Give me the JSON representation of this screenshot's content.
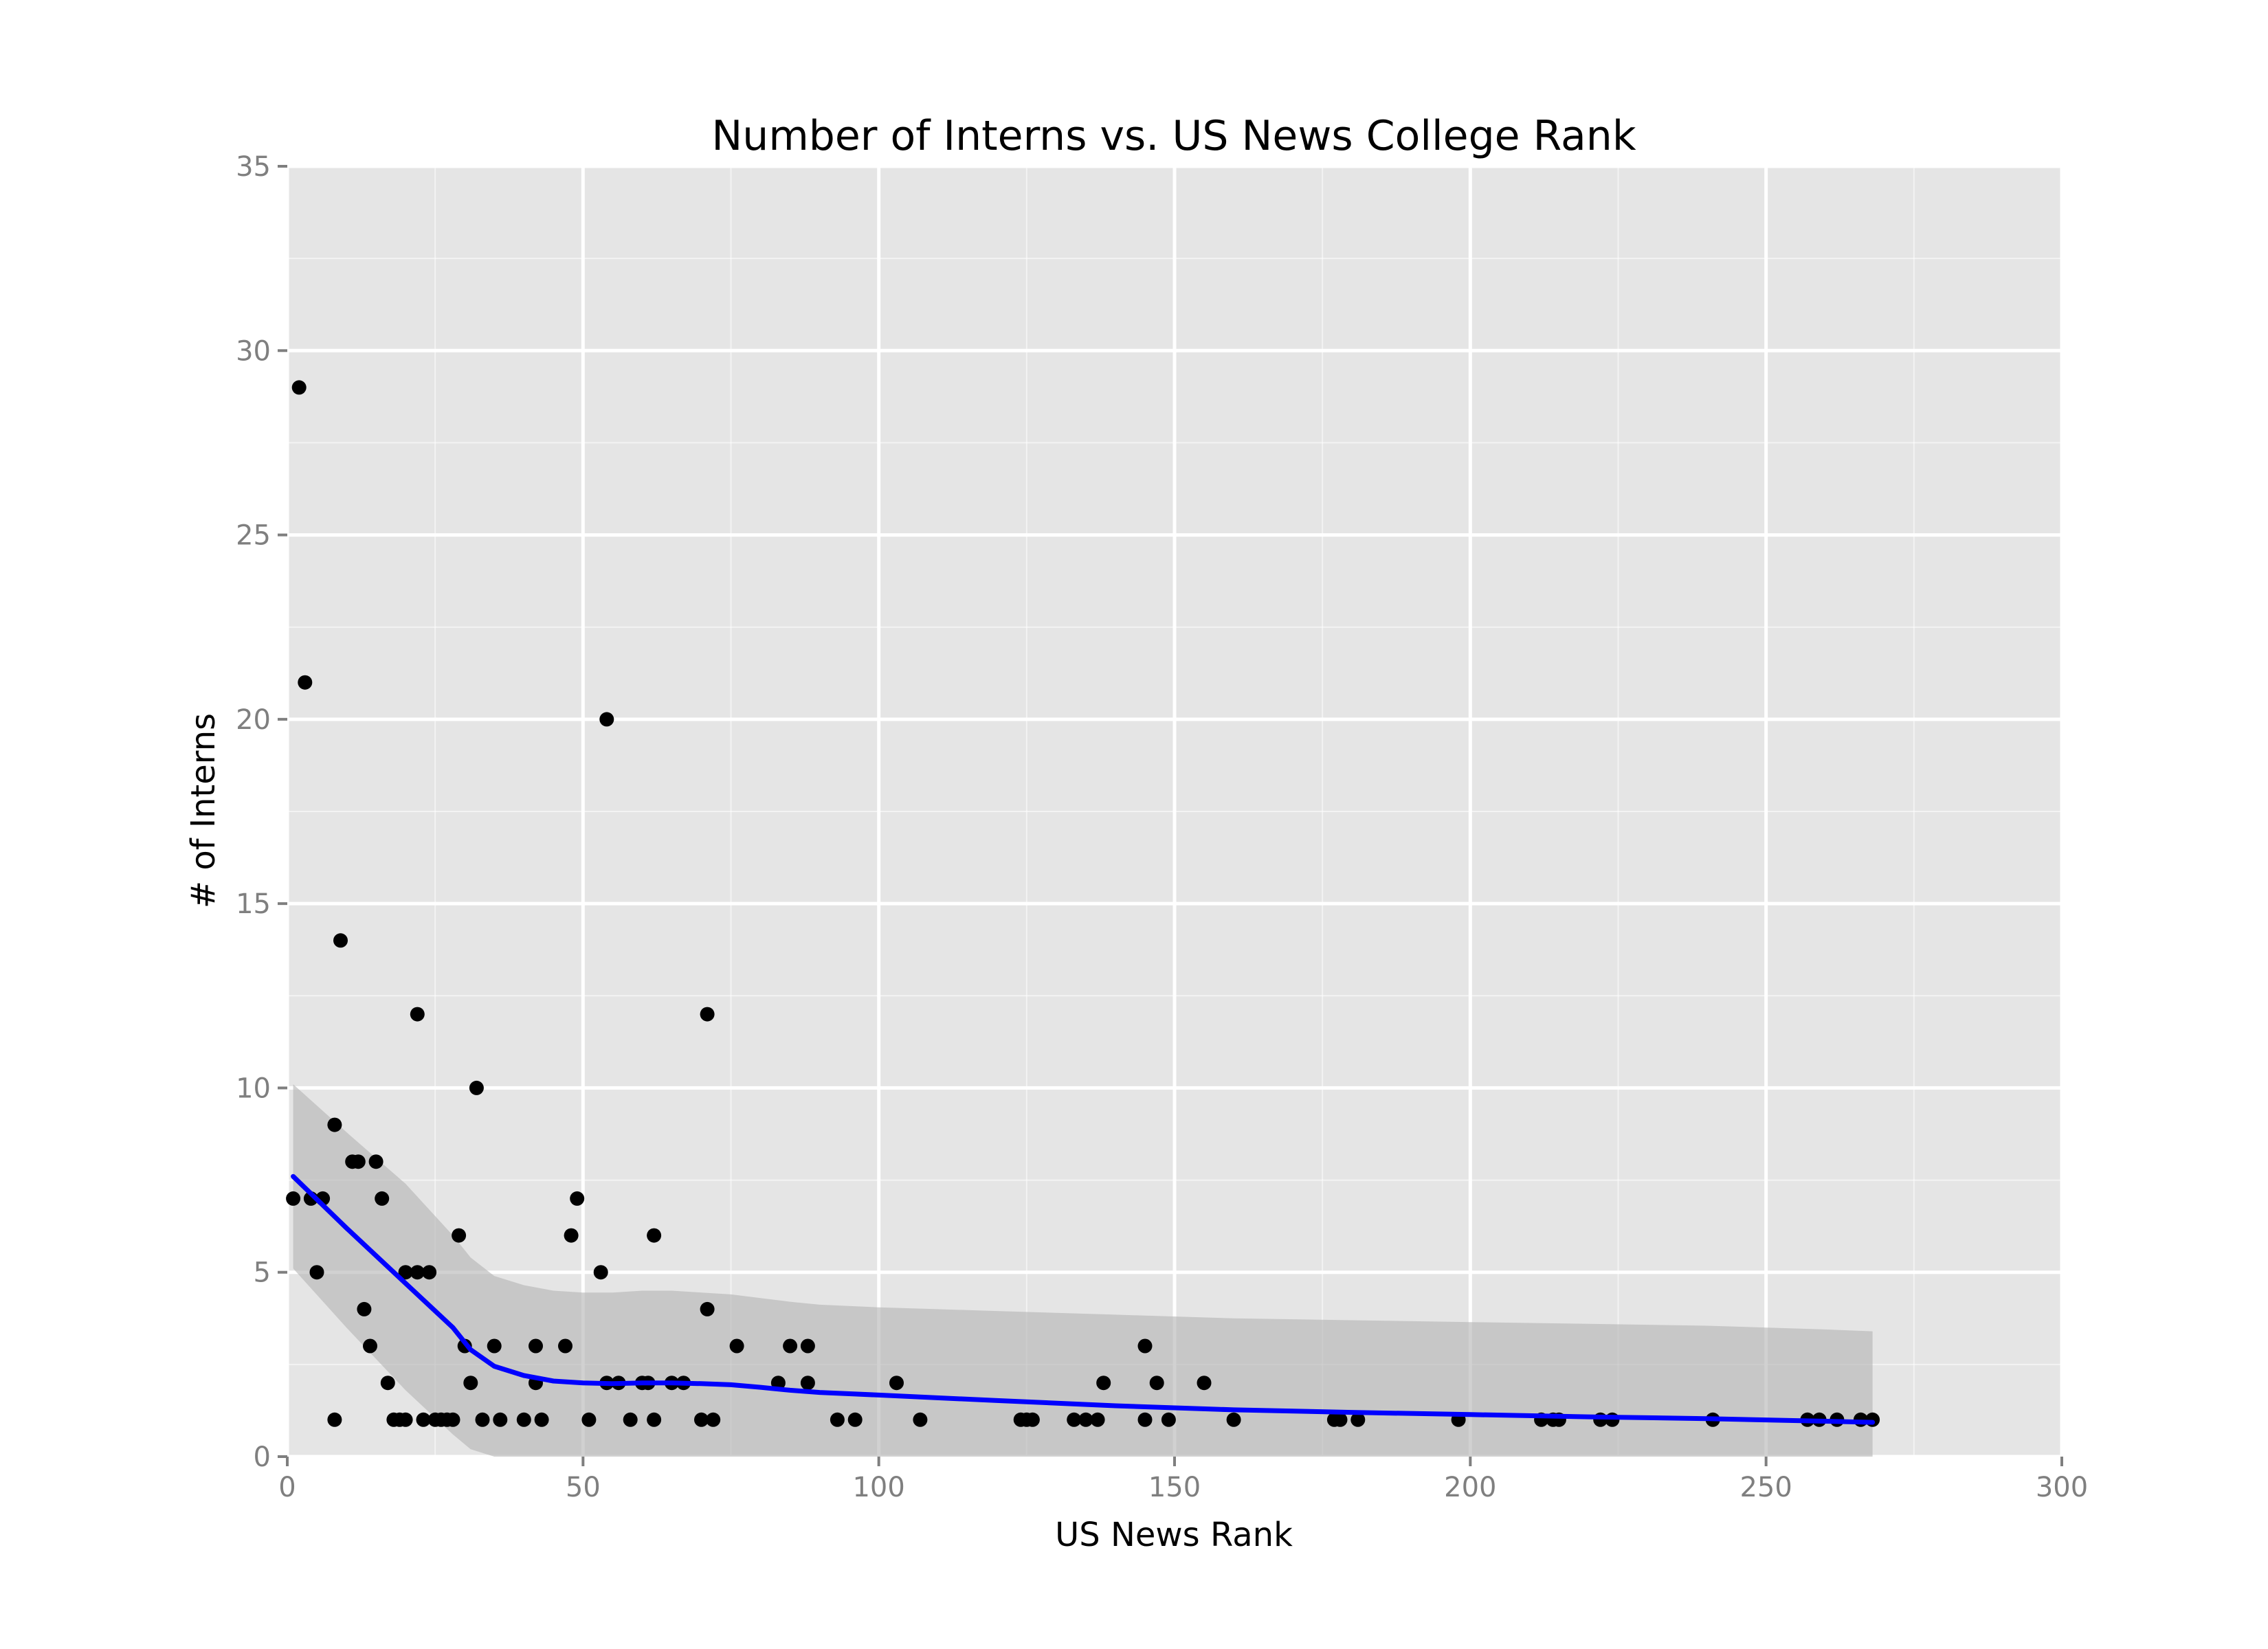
{
  "chart_data": {
    "type": "scatter",
    "title": "Number of Interns vs. US News College Rank",
    "xlabel": "US News Rank",
    "ylabel": "# of Interns",
    "xlim": [
      0,
      300
    ],
    "ylim": [
      0,
      35
    ],
    "xticks": [
      0,
      50,
      100,
      150,
      200,
      250,
      300
    ],
    "yticks": [
      0,
      5,
      10,
      15,
      20,
      25,
      30,
      35
    ],
    "xtick_labels": [
      "0",
      "50",
      "100",
      "150",
      "200",
      "250",
      "300"
    ],
    "ytick_labels": [
      "0",
      "5",
      "10",
      "15",
      "20",
      "25",
      "30",
      "35"
    ],
    "grid": true,
    "legend": "none",
    "colors": {
      "panel": "#e5e5e5",
      "grid": "#ffffff",
      "points": "#000000",
      "smooth_line": "#0000ff",
      "confidence_band": "#b3b3b3"
    },
    "points": [
      [
        1,
        7
      ],
      [
        2,
        29
      ],
      [
        3,
        21
      ],
      [
        4,
        7
      ],
      [
        5,
        5
      ],
      [
        6,
        7
      ],
      [
        8,
        9
      ],
      [
        8,
        1
      ],
      [
        9,
        14
      ],
      [
        11,
        8
      ],
      [
        12,
        8
      ],
      [
        13,
        4
      ],
      [
        14,
        3
      ],
      [
        15,
        8
      ],
      [
        16,
        7
      ],
      [
        17,
        2
      ],
      [
        18,
        1
      ],
      [
        19,
        1
      ],
      [
        20,
        1
      ],
      [
        20,
        5
      ],
      [
        22,
        5
      ],
      [
        22,
        12
      ],
      [
        23,
        1
      ],
      [
        24,
        5
      ],
      [
        25,
        1
      ],
      [
        26,
        1
      ],
      [
        27,
        1
      ],
      [
        28,
        1
      ],
      [
        29,
        6
      ],
      [
        30,
        3
      ],
      [
        31,
        2
      ],
      [
        32,
        10
      ],
      [
        33,
        1
      ],
      [
        35,
        3
      ],
      [
        36,
        1
      ],
      [
        40,
        1
      ],
      [
        42,
        3
      ],
      [
        42,
        2
      ],
      [
        43,
        1
      ],
      [
        47,
        3
      ],
      [
        48,
        6
      ],
      [
        49,
        7
      ],
      [
        51,
        1
      ],
      [
        53,
        5
      ],
      [
        54,
        2
      ],
      [
        54,
        20
      ],
      [
        56,
        2
      ],
      [
        58,
        1
      ],
      [
        60,
        2
      ],
      [
        61,
        2
      ],
      [
        62,
        1
      ],
      [
        62,
        6
      ],
      [
        65,
        2
      ],
      [
        67,
        2
      ],
      [
        70,
        1
      ],
      [
        71,
        4
      ],
      [
        71,
        12
      ],
      [
        72,
        1
      ],
      [
        76,
        3
      ],
      [
        83,
        2
      ],
      [
        85,
        3
      ],
      [
        88,
        3
      ],
      [
        88,
        2
      ],
      [
        93,
        1
      ],
      [
        96,
        1
      ],
      [
        103,
        2
      ],
      [
        107,
        1
      ],
      [
        124,
        1
      ],
      [
        125,
        1
      ],
      [
        126,
        1
      ],
      [
        133,
        1
      ],
      [
        135,
        1
      ],
      [
        137,
        1
      ],
      [
        138,
        2
      ],
      [
        145,
        3
      ],
      [
        145,
        1
      ],
      [
        147,
        2
      ],
      [
        149,
        1
      ],
      [
        155,
        2
      ],
      [
        160,
        1
      ],
      [
        177,
        1
      ],
      [
        178,
        1
      ],
      [
        181,
        1
      ],
      [
        198,
        1
      ],
      [
        212,
        1
      ],
      [
        214,
        1
      ],
      [
        215,
        1
      ],
      [
        222,
        1
      ],
      [
        224,
        1
      ],
      [
        241,
        1
      ],
      [
        257,
        1
      ],
      [
        259,
        1
      ],
      [
        262,
        1
      ],
      [
        266,
        1
      ],
      [
        268,
        1
      ]
    ],
    "smooth": {
      "x": [
        1,
        10,
        20,
        28,
        31,
        35,
        40,
        45,
        50,
        55,
        60,
        65,
        70,
        75,
        80,
        85,
        90,
        100,
        120,
        140,
        160,
        180,
        200,
        220,
        240,
        260,
        268
      ],
      "y": [
        7.6,
        6.2,
        4.7,
        3.5,
        2.9,
        2.45,
        2.2,
        2.05,
        2.0,
        1.98,
        2.0,
        2.0,
        1.98,
        1.95,
        1.88,
        1.8,
        1.74,
        1.67,
        1.52,
        1.38,
        1.27,
        1.2,
        1.14,
        1.08,
        1.03,
        0.96,
        0.93
      ],
      "lower": [
        5.1,
        3.5,
        1.8,
        0.6,
        0.2,
        0.0,
        0.0,
        0.0,
        0.0,
        0.0,
        0.0,
        0.0,
        0.0,
        0.0,
        0.0,
        0.0,
        0.0,
        0.0,
        0.0,
        0.0,
        0.0,
        0.0,
        0.0,
        0.0,
        0.0,
        0.0,
        0.0
      ],
      "upper": [
        10.1,
        8.8,
        7.4,
        6.0,
        5.4,
        4.9,
        4.65,
        4.5,
        4.45,
        4.45,
        4.5,
        4.5,
        4.45,
        4.4,
        4.3,
        4.2,
        4.12,
        4.05,
        3.95,
        3.85,
        3.75,
        3.7,
        3.65,
        3.6,
        3.55,
        3.45,
        3.4
      ]
    }
  }
}
